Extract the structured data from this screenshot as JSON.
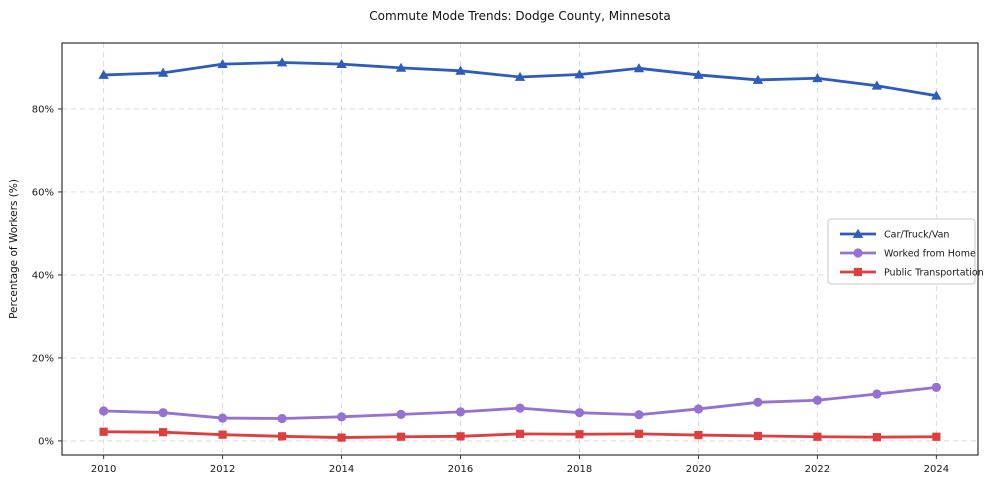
{
  "chart_data": {
    "type": "line",
    "title": "Commute Mode Trends: Dodge County, Minnesota",
    "xlabel": "",
    "ylabel": "Percentage of Workers (%)",
    "x": [
      2010,
      2011,
      2012,
      2013,
      2014,
      2015,
      2016,
      2017,
      2018,
      2019,
      2020,
      2021,
      2022,
      2023,
      2024
    ],
    "series": [
      {
        "name": "Car/Truck/Van",
        "color": "#2d5cbe",
        "marker": "triangle",
        "values": [
          88.2,
          88.7,
          90.8,
          91.2,
          90.8,
          89.9,
          89.2,
          87.7,
          88.3,
          89.8,
          88.2,
          87.0,
          87.4,
          85.6,
          83.2
        ]
      },
      {
        "name": "Worked from Home",
        "color": "#9571d3",
        "marker": "circle",
        "values": [
          7.2,
          6.8,
          5.5,
          5.4,
          5.8,
          6.4,
          7.0,
          7.9,
          6.8,
          6.3,
          7.7,
          9.3,
          9.8,
          11.3,
          12.9
        ]
      },
      {
        "name": "Public Transportation",
        "color": "#df3e3e",
        "marker": "square",
        "values": [
          2.2,
          2.1,
          1.5,
          1.1,
          0.8,
          1.0,
          1.1,
          1.7,
          1.6,
          1.7,
          1.4,
          1.2,
          1.0,
          0.9,
          1.0
        ]
      }
    ],
    "xticks": [
      2010,
      2012,
      2014,
      2016,
      2018,
      2020,
      2022,
      2024
    ],
    "yticks": [
      0,
      20,
      40,
      60,
      80
    ],
    "ytick_suffix": "%",
    "xlim": [
      2009.3,
      2024.7
    ],
    "ylim": [
      -3.4,
      95.9
    ],
    "grid": true,
    "grid_color": "#d5d5d5",
    "spine_color": "#333333",
    "legend_position": "right-middle",
    "legend_border_color": "#c9c9c9"
  }
}
